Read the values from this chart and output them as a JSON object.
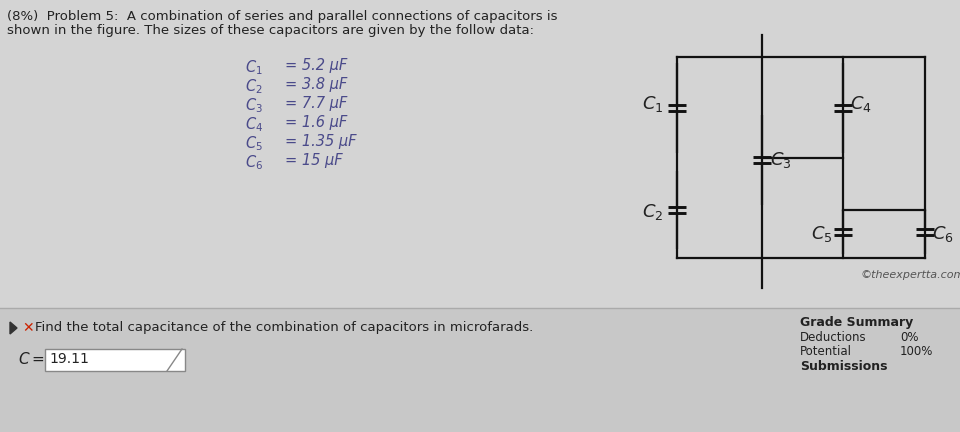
{
  "title_line1": "(8%)  Problem 5:  A combination of series and parallel connections of capacitors is",
  "title_line2": "shown in the figure. The sizes of these capacitors are given by the follow data:",
  "cap_labels": [
    "1",
    "2",
    "3",
    "4",
    "5",
    "6"
  ],
  "cap_values": [
    "5.2",
    "3.8",
    "7.7",
    "1.6",
    "1.35",
    "15"
  ],
  "cap_unit": "μF",
  "question_text": "Find the total capacitance of the combination of capacitors in microfarads.",
  "answer_value": "19.11",
  "grade_summary_title": "Grade Summary",
  "deductions_label": "Deductions",
  "deductions_value": "0%",
  "potential_label": "Potential",
  "potential_value": "100%",
  "submissions_label": "Submissions",
  "bg_color": "#d4d4d4",
  "text_color": "#222222",
  "cap_text_color": "#4a4a8a",
  "line_color": "#111111",
  "bottom_bg": "#c8c8c8",
  "copyright": "©theexpertta.com"
}
